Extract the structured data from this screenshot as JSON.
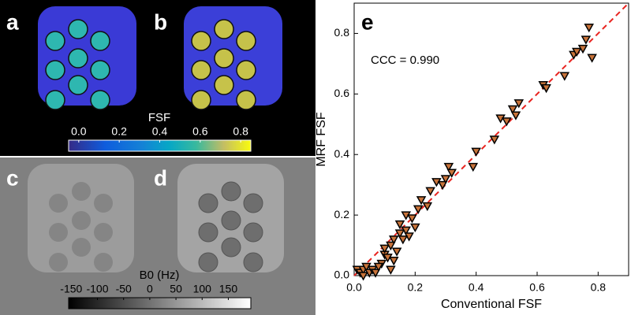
{
  "panels": [
    "a",
    "b",
    "c",
    "d"
  ],
  "colorbars": [
    {
      "label": "FSF",
      "lim": [
        -0.05,
        0.85
      ],
      "ticks": [
        {
          "value": 0,
          "label": "0.0"
        },
        0.2,
        0.4,
        0.6,
        0.8
      ]
    },
    {
      "label": "B0 (Hz)",
      "lim": [
        -155,
        193
      ],
      "ticks": [
        -150,
        -100,
        -50,
        0,
        50,
        100,
        150
      ]
    }
  ],
  "chart_data": {
    "type": "scatter",
    "panel_label": "e",
    "annotation": "CCC = 0.990",
    "x_label": "Conventional FSF",
    "y_label": "MRF FSF",
    "color": "#c8733a",
    "identity_line": true,
    "xlim": [
      0,
      0.9
    ],
    "ylim": [
      0,
      0.9
    ],
    "xticks": [
      {
        "value": 0,
        "label": "0.0"
      },
      0.2,
      0.4,
      0.6,
      0.8
    ],
    "yticks": [
      {
        "value": 0,
        "label": "0.0"
      },
      0.2,
      0.4,
      0.6,
      0.8
    ],
    "x": [
      0.01,
      0.02,
      0.03,
      0.04,
      0.05,
      0.06,
      0.07,
      0.03,
      0.09,
      0.1,
      0.11,
      0.12,
      0.1,
      0.12,
      0.13,
      0.14,
      0.15,
      0.15,
      0.17,
      0.18,
      0.17,
      0.2,
      0.19,
      0.21,
      0.22,
      0.24,
      0.25,
      0.27,
      0.29,
      0.3,
      0.31,
      0.32,
      0.39,
      0.4,
      0.46,
      0.48,
      0.5,
      0.52,
      0.53,
      0.54,
      0.62,
      0.63,
      0.69,
      0.72,
      0.73,
      0.75,
      0.76,
      0.77,
      0.78,
      0.16,
      0.08,
      0.13
    ],
    "y": [
      0.02,
      0.01,
      0.02,
      0.03,
      0.01,
      0.02,
      0.01,
      0.0,
      0.04,
      0.07,
      0.06,
      0.02,
      0.09,
      0.1,
      0.12,
      0.08,
      0.14,
      0.17,
      0.15,
      0.13,
      0.2,
      0.16,
      0.19,
      0.22,
      0.25,
      0.23,
      0.28,
      0.31,
      0.3,
      0.32,
      0.36,
      0.34,
      0.36,
      0.41,
      0.45,
      0.52,
      0.51,
      0.55,
      0.53,
      0.57,
      0.63,
      0.62,
      0.66,
      0.73,
      0.74,
      0.75,
      0.78,
      0.82,
      0.72,
      0.12,
      0.03,
      0.05
    ]
  }
}
